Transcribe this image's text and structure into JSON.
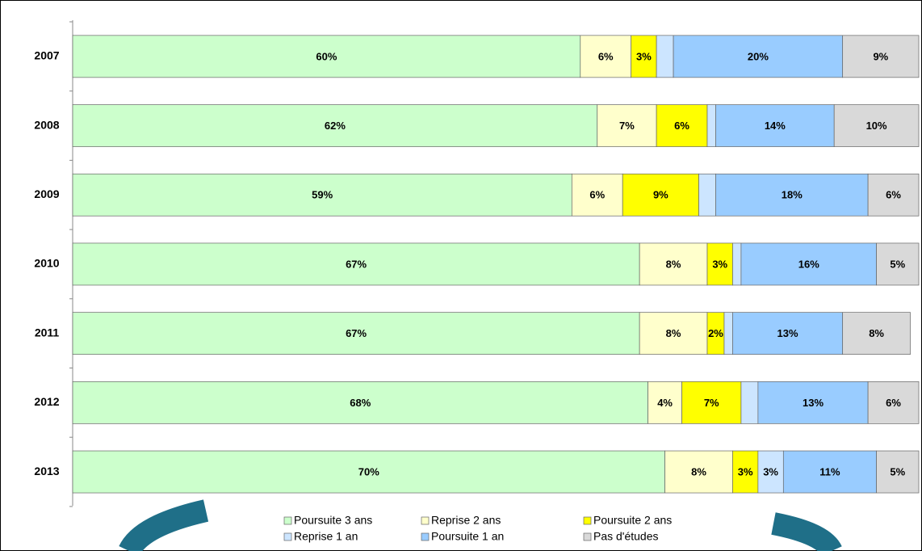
{
  "chart_data": {
    "type": "stacked-bar-horizontal",
    "categories": [
      "2007",
      "2008",
      "2009",
      "2010",
      "2011",
      "2012",
      "2013"
    ],
    "xlim": [
      0,
      100
    ],
    "legend": "bottom",
    "series": [
      {
        "name": "Poursuite 3 ans",
        "color": "#ccffcc",
        "values": [
          60,
          62,
          59,
          67,
          67,
          68,
          70
        ],
        "value_labels": [
          "60%",
          "62%",
          "59%",
          "67%",
          "67%",
          "68%",
          "70%"
        ]
      },
      {
        "name": "Reprise 2 ans",
        "color": "#ffffcc",
        "values": [
          6,
          7,
          6,
          8,
          8,
          4,
          8
        ],
        "value_labels": [
          "6%",
          "7%",
          "6%",
          "8%",
          "8%",
          "4%",
          "8%"
        ]
      },
      {
        "name": "Poursuite 2 ans",
        "color": "#ffff00",
        "values": [
          3,
          6,
          9,
          3,
          2,
          7,
          3
        ],
        "value_labels": [
          "3%",
          "6%",
          "9%",
          "3%",
          "2%",
          "7%",
          "3%"
        ]
      },
      {
        "name": "Reprise 1 an",
        "color": "#cce5ff",
        "values": [
          2,
          1,
          2,
          1,
          1,
          2,
          3
        ],
        "value_labels": [
          null,
          null,
          null,
          null,
          null,
          null,
          "3%"
        ]
      },
      {
        "name": "Poursuite 1 an",
        "color": "#99ccff",
        "values": [
          20,
          14,
          18,
          16,
          13,
          13,
          11
        ],
        "value_labels": [
          "20%",
          "14%",
          "18%",
          "16%",
          "13%",
          "13%",
          "11%"
        ]
      },
      {
        "name": "Pas d'études",
        "color": "#d9d9d9",
        "values": [
          9,
          10,
          6,
          5,
          8,
          6,
          5
        ],
        "value_labels": [
          "9%",
          "10%",
          "6%",
          "5%",
          "8%",
          "6%",
          "5%"
        ]
      }
    ]
  }
}
